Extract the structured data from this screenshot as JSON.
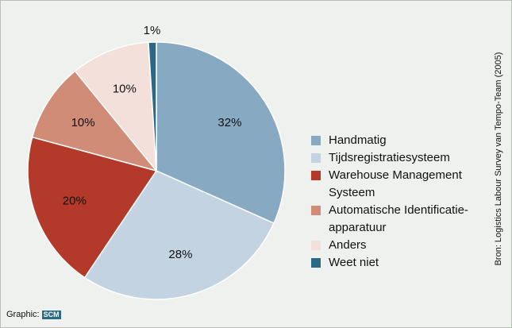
{
  "chart_data": {
    "type": "pie",
    "categories": [
      "Handmatig",
      "Tijdsregistratiesysteem",
      "Warehouse Management Systeem",
      "Automatische Identificatie-apparatuur",
      "Anders",
      "Weet niet"
    ],
    "values": [
      32,
      28,
      20,
      10,
      10,
      1
    ],
    "value_labels": [
      "32%",
      "28%",
      "20%",
      "10%",
      "10%",
      "1%"
    ],
    "colors": [
      "#87a9c2",
      "#c3d3e2",
      "#b33a2a",
      "#d08c77",
      "#f3e0da",
      "#2b6a86"
    ],
    "source": "Bron: Logistics Labour Survey van Tempo-Team (2005)",
    "credit": "Graphic:",
    "logo": "SCM"
  }
}
